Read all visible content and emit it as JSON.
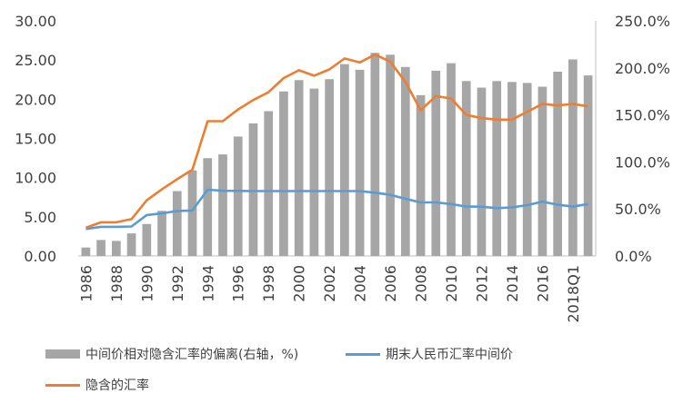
{
  "chart_data": {
    "type": "bar+line",
    "categories": [
      "1986",
      "1987",
      "1988",
      "1989",
      "1990",
      "1991",
      "1992",
      "1993",
      "1994",
      "1995",
      "1996",
      "1997",
      "1998",
      "1999",
      "2000",
      "2001",
      "2002",
      "2003",
      "2004",
      "2005",
      "2006",
      "2007",
      "2008",
      "2009",
      "2010",
      "2011",
      "2012",
      "2013",
      "2014",
      "2015",
      "2016",
      "2017",
      "2018Q1",
      "2018Q2"
    ],
    "x_tick_labels": [
      "1986",
      "1988",
      "1990",
      "1992",
      "1994",
      "1996",
      "1998",
      "2000",
      "2002",
      "2004",
      "2006",
      "2008",
      "2010",
      "2012",
      "2014",
      "2016",
      "2018Q1"
    ],
    "y_left": {
      "ylim": [
        0,
        30
      ],
      "ticks": [
        "0.00",
        "5.00",
        "10.00",
        "15.00",
        "20.00",
        "25.00",
        "30.00"
      ]
    },
    "y_right": {
      "ylim": [
        0,
        250
      ],
      "ticks": [
        "0.0%",
        "50.0%",
        "100.0%",
        "150.0%",
        "200.0%",
        "250.0%"
      ]
    },
    "series": [
      {
        "name": "中间价相对隐含汇率的偏离(右轴，%)",
        "type": "bar",
        "axis": "right",
        "color": "#a6a6a6",
        "values": [
          9,
          17,
          16,
          24,
          34,
          48,
          69,
          91,
          104,
          108,
          127,
          141,
          154,
          175,
          187,
          178,
          188,
          204,
          198,
          216,
          214,
          201,
          171,
          197,
          205,
          186,
          179,
          186,
          185,
          184,
          180,
          196,
          209,
          192
        ]
      },
      {
        "name": "期末人民币汇率中间价",
        "type": "line",
        "axis": "left",
        "color": "#5b9bd5",
        "values": [
          3.45,
          3.72,
          3.72,
          3.76,
          5.22,
          5.43,
          5.75,
          5.8,
          8.45,
          8.32,
          8.3,
          8.28,
          8.28,
          8.28,
          8.28,
          8.28,
          8.28,
          8.28,
          8.28,
          8.07,
          7.81,
          7.3,
          6.83,
          6.83,
          6.62,
          6.3,
          6.29,
          6.1,
          6.2,
          6.49,
          6.94,
          6.53,
          6.3,
          6.62
        ]
      },
      {
        "name": "隐含的汇率",
        "type": "line",
        "axis": "left",
        "color": "#ed7d31",
        "values": [
          3.6,
          4.3,
          4.3,
          4.7,
          7.1,
          8.5,
          9.8,
          11.0,
          17.2,
          17.2,
          18.7,
          19.9,
          20.9,
          22.7,
          23.7,
          23.0,
          23.8,
          25.2,
          24.7,
          25.7,
          24.8,
          22.2,
          18.6,
          20.4,
          20.1,
          18.0,
          17.6,
          17.4,
          17.4,
          18.4,
          19.4,
          19.2,
          19.4,
          19.1
        ]
      }
    ]
  }
}
